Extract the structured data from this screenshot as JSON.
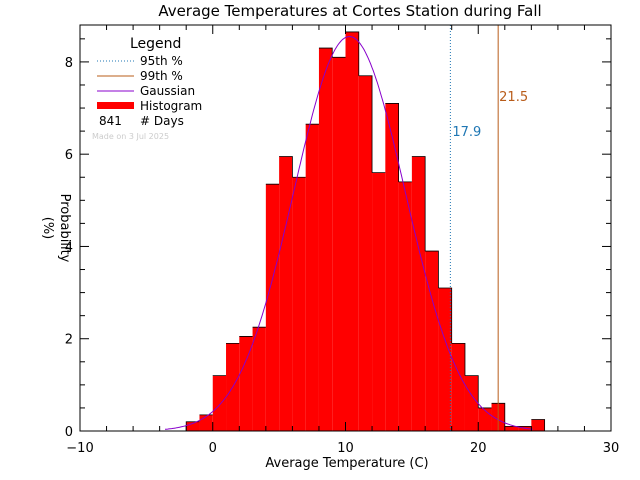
{
  "chart_data": {
    "type": "bar",
    "title": "Average Temperatures at Cortes Station during Fall",
    "xlabel": "Average Temperature (C)",
    "ylabel": "Probability",
    "ylabel_unit": "(%)",
    "xlim": [
      -10,
      30
    ],
    "ylim": [
      0,
      8.8
    ],
    "x_ticks": [
      -10,
      0,
      10,
      20,
      30
    ],
    "y_ticks": [
      0,
      2,
      4,
      6,
      8
    ],
    "bin_width": 1,
    "bins": [
      {
        "x0": -2,
        "value": 0.2
      },
      {
        "x0": -1,
        "value": 0.35
      },
      {
        "x0": 0,
        "value": 1.2
      },
      {
        "x0": 1,
        "value": 1.9
      },
      {
        "x0": 2,
        "value": 2.05
      },
      {
        "x0": 3,
        "value": 2.25
      },
      {
        "x0": 4,
        "value": 5.35
      },
      {
        "x0": 5,
        "value": 5.95
      },
      {
        "x0": 6,
        "value": 5.5
      },
      {
        "x0": 7,
        "value": 6.65
      },
      {
        "x0": 8,
        "value": 8.3
      },
      {
        "x0": 9,
        "value": 8.1
      },
      {
        "x0": 10,
        "value": 8.65
      },
      {
        "x0": 11,
        "value": 7.7
      },
      {
        "x0": 12,
        "value": 5.6
      },
      {
        "x0": 13,
        "value": 7.1
      },
      {
        "x0": 14,
        "value": 5.4
      },
      {
        "x0": 15,
        "value": 5.95
      },
      {
        "x0": 16,
        "value": 3.9
      },
      {
        "x0": 17,
        "value": 3.1
      },
      {
        "x0": 18,
        "value": 1.9
      },
      {
        "x0": 19,
        "value": 1.2
      },
      {
        "x0": 20,
        "value": 0.5
      },
      {
        "x0": 21,
        "value": 0.6
      },
      {
        "x0": 22,
        "value": 0.1
      },
      {
        "x0": 23,
        "value": 0.1
      },
      {
        "x0": 24,
        "value": 0.25
      }
    ],
    "gaussian": {
      "mean": 10.3,
      "sigma": 4.2,
      "peak": 8.55,
      "x_range": [
        -3.6,
        24.2
      ]
    },
    "percentiles": [
      {
        "name": "95th %",
        "value": 17.9,
        "label": "17.9",
        "color": "#1f77b4",
        "style": "dotted"
      },
      {
        "name": "99th %",
        "value": 21.5,
        "label": "21.5",
        "color": "#b85c1a",
        "style": "solid"
      }
    ],
    "legend": {
      "title": "Legend",
      "position": "top-left",
      "entries": [
        {
          "label": "95th %",
          "kind": "dotted",
          "color": "#1f77b4"
        },
        {
          "label": "99th %",
          "kind": "line",
          "color": "#b85c1a"
        },
        {
          "label": "Gaussian",
          "kind": "line",
          "color": "#8800cc"
        },
        {
          "label": "Histogram",
          "kind": "bar",
          "color": "#ff0000"
        },
        {
          "count": "841",
          "label": "# Days",
          "kind": "text"
        }
      ]
    },
    "footnote": "Made on 3 Jul 2025",
    "colors": {
      "bar_fill": "#ff0000",
      "gaussian": "#8800cc",
      "axes": "#000000"
    }
  }
}
